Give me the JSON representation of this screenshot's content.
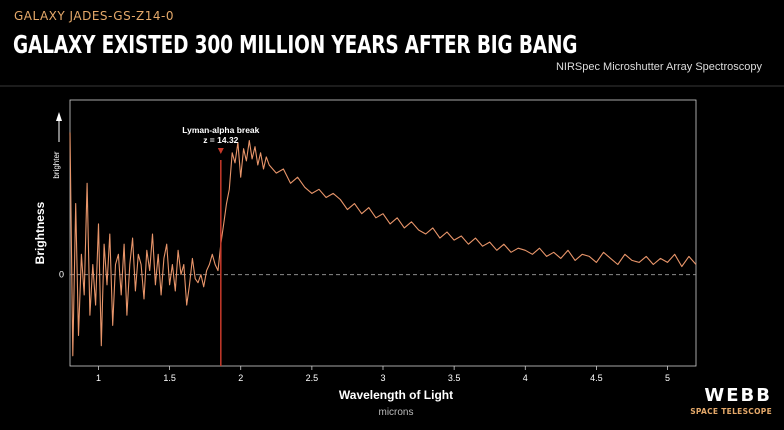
{
  "header": {
    "kicker": "GALAXY JADES-GS-Z14-0",
    "title": "GALAXY EXISTED 300 MILLION YEARS AFTER BIG BANG",
    "subtitle": "NIRSpec Microshutter Array Spectroscopy"
  },
  "logo": {
    "main": "WEBB",
    "sub": "SPACE TELESCOPE"
  },
  "colors": {
    "background": "#000000",
    "spectrum_line": "#e8956a",
    "break_marker": "#c83a2a",
    "zero_line": "#8a8a8a",
    "accent": "#e5a96a"
  },
  "chart_data": {
    "type": "line",
    "title": "",
    "xlabel": "Wavelength of Light",
    "xunit": "microns",
    "ylabel": "Brightness",
    "yarrow_label": "brighter",
    "xlim": [
      0.8,
      5.2
    ],
    "ylim": [
      -0.45,
      0.86
    ],
    "xticks": [
      1,
      1.5,
      2,
      2.5,
      3,
      3.5,
      4,
      4.5,
      5
    ],
    "xtick_labels": [
      "1",
      "1.5",
      "2",
      "2.5",
      "3",
      "3.5",
      "4",
      "4.5",
      "5"
    ],
    "yticks": [
      0
    ],
    "ytick_labels": [
      "0"
    ],
    "grid": false,
    "zero_line": true,
    "annotation": {
      "label": "Lyman-alpha break",
      "sublabel": "z = 14.32",
      "x": 1.86
    },
    "series": [
      {
        "x": [
          0.8,
          0.82,
          0.84,
          0.86,
          0.88,
          0.9,
          0.92,
          0.94,
          0.96,
          0.98,
          1.0,
          1.02,
          1.04,
          1.06,
          1.08,
          1.1,
          1.12,
          1.14,
          1.16,
          1.18,
          1.2,
          1.22,
          1.24,
          1.26,
          1.28,
          1.3,
          1.32,
          1.34,
          1.36,
          1.38,
          1.4,
          1.42,
          1.44,
          1.46,
          1.48,
          1.5,
          1.52,
          1.54,
          1.56,
          1.58,
          1.6,
          1.62,
          1.64,
          1.66,
          1.68,
          1.7,
          1.72,
          1.74,
          1.76,
          1.78,
          1.8,
          1.82,
          1.84,
          1.86,
          1.88,
          1.9,
          1.92,
          1.94,
          1.96,
          1.98,
          2.0,
          2.02,
          2.04,
          2.06,
          2.08,
          2.1,
          2.12,
          2.14,
          2.16,
          2.18,
          2.2,
          2.25,
          2.3,
          2.35,
          2.4,
          2.45,
          2.5,
          2.55,
          2.6,
          2.65,
          2.7,
          2.75,
          2.8,
          2.85,
          2.9,
          2.95,
          3.0,
          3.05,
          3.1,
          3.15,
          3.2,
          3.25,
          3.3,
          3.35,
          3.4,
          3.45,
          3.5,
          3.55,
          3.6,
          3.65,
          3.7,
          3.75,
          3.8,
          3.85,
          3.9,
          3.95,
          4.0,
          4.05,
          4.1,
          4.15,
          4.2,
          4.25,
          4.3,
          4.35,
          4.4,
          4.45,
          4.5,
          4.55,
          4.6,
          4.65,
          4.7,
          4.75,
          4.8,
          4.85,
          4.9,
          4.95,
          5.0,
          5.05,
          5.1,
          5.15,
          5.2
        ],
        "y": [
          0.7,
          -0.4,
          0.35,
          -0.3,
          0.1,
          -0.1,
          0.45,
          -0.2,
          0.05,
          -0.15,
          0.25,
          -0.35,
          0.15,
          -0.05,
          0.2,
          -0.25,
          0.05,
          0.1,
          -0.1,
          0.15,
          -0.2,
          0.05,
          0.18,
          -0.08,
          0.1,
          0.05,
          -0.12,
          0.12,
          0.02,
          0.2,
          -0.05,
          0.1,
          -0.1,
          0.08,
          0.15,
          -0.05,
          0.05,
          -0.08,
          0.12,
          0.0,
          0.05,
          -0.15,
          -0.05,
          0.08,
          -0.02,
          -0.04,
          0.0,
          -0.06,
          0.02,
          0.05,
          0.1,
          0.05,
          0.02,
          0.15,
          0.25,
          0.35,
          0.42,
          0.6,
          0.55,
          0.65,
          0.48,
          0.62,
          0.56,
          0.66,
          0.57,
          0.63,
          0.54,
          0.6,
          0.52,
          0.58,
          0.54,
          0.5,
          0.52,
          0.45,
          0.48,
          0.43,
          0.4,
          0.42,
          0.38,
          0.4,
          0.37,
          0.32,
          0.35,
          0.3,
          0.33,
          0.28,
          0.3,
          0.25,
          0.28,
          0.23,
          0.26,
          0.22,
          0.2,
          0.23,
          0.18,
          0.21,
          0.17,
          0.19,
          0.15,
          0.18,
          0.14,
          0.16,
          0.12,
          0.15,
          0.11,
          0.13,
          0.12,
          0.1,
          0.13,
          0.09,
          0.11,
          0.08,
          0.12,
          0.07,
          0.1,
          0.09,
          0.06,
          0.11,
          0.08,
          0.05,
          0.1,
          0.07,
          0.06,
          0.09,
          0.05,
          0.08,
          0.06,
          0.1,
          0.04,
          0.09,
          0.05
        ]
      }
    ]
  }
}
